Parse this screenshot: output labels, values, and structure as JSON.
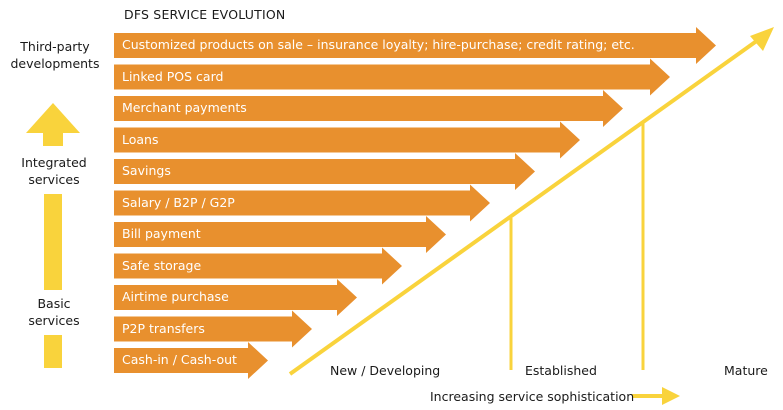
{
  "title": "DFS SERVICE EVOLUTION",
  "side_labels": {
    "third_party": "Third-party\ndevelopments",
    "integrated": "Integrated\nservices",
    "basic": "Basic\nservices"
  },
  "services": [
    "Customized products on sale – insurance loyalty; hire-purchase; credit rating; etc.",
    "Linked POS card",
    "Merchant payments",
    "Loans",
    "Savings",
    "Salary / B2P / G2P",
    "Bill payment",
    "Safe storage",
    "Airtime purchase",
    "P2P transfers",
    "Cash-in / Cash-out"
  ],
  "stages": {
    "new": "New / Developing",
    "established": "Established",
    "mature": "Mature"
  },
  "x_axis_label": "Increasing service sophistication",
  "colors": {
    "bar": "#e8902e",
    "arrow": "#f9d33c"
  }
}
